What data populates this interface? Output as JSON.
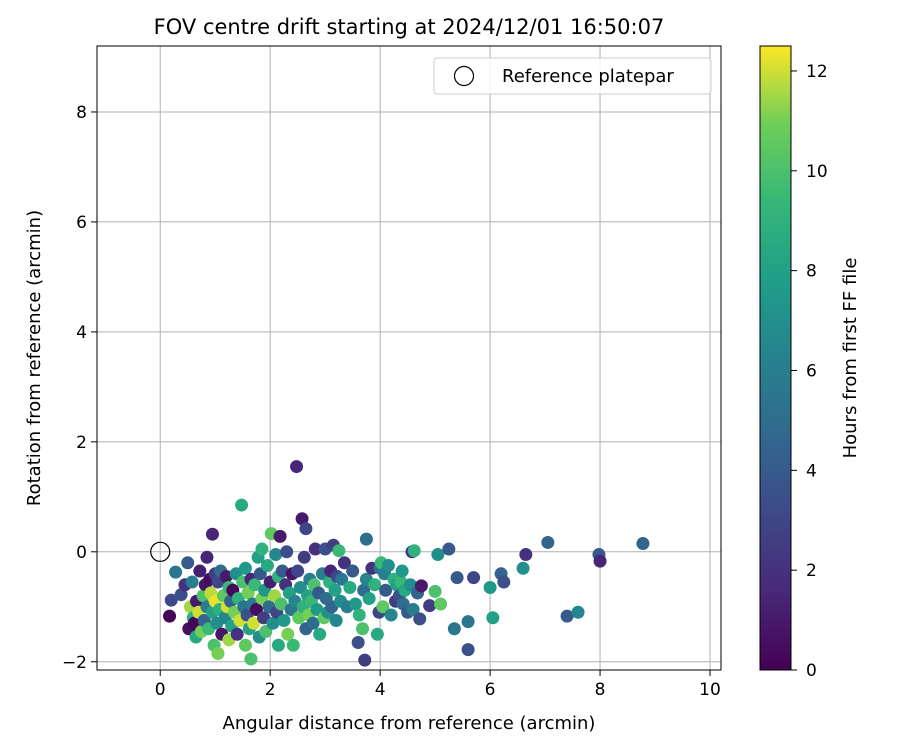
{
  "chart_data": {
    "type": "scatter",
    "title": "FOV centre drift starting at 2024/12/01 16:50:07",
    "xlabel": "Angular distance from reference (arcmin)",
    "ylabel": "Rotation from reference (arcmin)",
    "xlim": [
      -1.15,
      10.2
    ],
    "ylim": [
      -2.15,
      9.2
    ],
    "xticks": [
      0,
      2,
      4,
      6,
      8,
      10
    ],
    "yticks": [
      -2,
      0,
      2,
      4,
      6,
      8
    ],
    "grid": true,
    "legend": {
      "position": "top-right",
      "entries": [
        {
          "label": "Reference platepar",
          "marker": "open-circle"
        }
      ]
    },
    "reference_point": {
      "x": 0,
      "y": 0
    },
    "colorbar": {
      "label": "Hours from first FF file",
      "colormap": "viridis",
      "range": [
        0,
        12.5
      ],
      "ticks": [
        0,
        2,
        4,
        6,
        8,
        10,
        12
      ]
    },
    "points": [
      [
        0.17,
        -1.17,
        0.2
      ],
      [
        0.2,
        -0.88,
        3.2
      ],
      [
        0.28,
        -0.37,
        5.5
      ],
      [
        0.38,
        -0.78,
        3.5
      ],
      [
        0.45,
        -0.6,
        2
      ],
      [
        0.5,
        -0.2,
        4
      ],
      [
        0.52,
        -1.4,
        0.5
      ],
      [
        0.55,
        -1.0,
        11.5
      ],
      [
        0.58,
        -0.55,
        6
      ],
      [
        0.6,
        -1.2,
        9
      ],
      [
        0.62,
        -1.3,
        0.2
      ],
      [
        0.65,
        -1.55,
        8.5
      ],
      [
        0.66,
        -0.9,
        1
      ],
      [
        0.7,
        -1.1,
        12
      ],
      [
        0.72,
        -0.35,
        1.2
      ],
      [
        0.75,
        -1.45,
        11
      ],
      [
        0.78,
        -0.8,
        10
      ],
      [
        0.8,
        -1.25,
        4.5
      ],
      [
        0.82,
        -0.6,
        0.8
      ],
      [
        0.85,
        -1.0,
        6
      ],
      [
        0.85,
        -0.1,
        1.5
      ],
      [
        0.88,
        -1.4,
        9.5
      ],
      [
        0.9,
        -0.5,
        0.5
      ],
      [
        0.92,
        -0.75,
        11.8
      ],
      [
        0.95,
        -1.1,
        8
      ],
      [
        0.95,
        0.32,
        1.5
      ],
      [
        0.98,
        -1.7,
        10
      ],
      [
        1.0,
        -0.4,
        2.5
      ],
      [
        1.0,
        -0.9,
        12.3
      ],
      [
        1.03,
        -1.3,
        7
      ],
      [
        1.05,
        -1.85,
        11
      ],
      [
        1.05,
        -0.55,
        3
      ],
      [
        1.08,
        -1.05,
        9
      ],
      [
        1.1,
        -0.35,
        5
      ],
      [
        1.12,
        -1.5,
        0.8
      ],
      [
        1.15,
        -0.8,
        10.5
      ],
      [
        1.18,
        -1.2,
        6.5
      ],
      [
        1.2,
        -0.45,
        1
      ],
      [
        1.22,
        -1.0,
        12
      ],
      [
        1.25,
        -0.65,
        9.5
      ],
      [
        1.25,
        -1.6,
        11.5
      ],
      [
        1.28,
        -0.9,
        4.5
      ],
      [
        1.3,
        -1.35,
        8
      ],
      [
        1.32,
        -0.7,
        0.3
      ],
      [
        1.35,
        -1.1,
        11
      ],
      [
        1.38,
        -0.4,
        7
      ],
      [
        1.4,
        -1.5,
        2
      ],
      [
        1.42,
        -0.85,
        9
      ],
      [
        1.45,
        -1.25,
        12
      ],
      [
        1.48,
        0.85,
        8.5
      ],
      [
        1.5,
        -0.55,
        10
      ],
      [
        1.52,
        -1.0,
        5.5
      ],
      [
        1.55,
        -1.7,
        10.5
      ],
      [
        1.55,
        -0.3,
        7.5
      ],
      [
        1.58,
        -1.15,
        3.5
      ],
      [
        1.6,
        -0.75,
        11
      ],
      [
        1.62,
        -1.4,
        8
      ],
      [
        1.65,
        -0.5,
        1.5
      ],
      [
        1.65,
        -1.95,
        10
      ],
      [
        1.68,
        -0.95,
        6
      ],
      [
        1.7,
        -1.3,
        12
      ],
      [
        1.72,
        -0.6,
        9.5
      ],
      [
        1.75,
        -1.05,
        0.5
      ],
      [
        1.78,
        -0.1,
        8
      ],
      [
        1.8,
        -1.55,
        7
      ],
      [
        1.82,
        -0.4,
        4
      ],
      [
        1.85,
        -0.85,
        11
      ],
      [
        1.85,
        0.05,
        9
      ],
      [
        1.88,
        -1.2,
        2.5
      ],
      [
        1.9,
        -0.7,
        7.5
      ],
      [
        1.92,
        -1.45,
        10
      ],
      [
        1.95,
        -0.25,
        8.5
      ],
      [
        1.98,
        -1.0,
        5
      ],
      [
        2.0,
        -0.55,
        1.2
      ],
      [
        2.02,
        0.33,
        10.5
      ],
      [
        2.05,
        -1.3,
        7
      ],
      [
        2.08,
        -0.8,
        11.5
      ],
      [
        2.1,
        -0.05,
        6.5
      ],
      [
        2.12,
        -1.1,
        3
      ],
      [
        2.15,
        -0.45,
        9
      ],
      [
        2.15,
        -1.7,
        8.5
      ],
      [
        2.18,
        0.28,
        1
      ],
      [
        2.2,
        -0.95,
        10
      ],
      [
        2.22,
        -0.35,
        4
      ],
      [
        2.25,
        -1.25,
        7.5
      ],
      [
        2.28,
        -0.6,
        2
      ],
      [
        2.3,
        0.0,
        3.5
      ],
      [
        2.32,
        -1.5,
        11
      ],
      [
        2.35,
        -0.75,
        8
      ],
      [
        2.38,
        -1.05,
        5.5
      ],
      [
        2.4,
        -0.4,
        0.8
      ],
      [
        2.42,
        -1.7,
        9.5
      ],
      [
        2.45,
        -0.9,
        6.5
      ],
      [
        2.48,
        1.55,
        1.5
      ],
      [
        2.5,
        -0.35,
        3
      ],
      [
        2.52,
        -1.2,
        10.5
      ],
      [
        2.55,
        -0.65,
        7
      ],
      [
        2.58,
        0.6,
        1
      ],
      [
        2.6,
        -1.0,
        9
      ],
      [
        2.62,
        -0.1,
        2.5
      ],
      [
        2.65,
        -1.4,
        4.5
      ],
      [
        2.65,
        0.42,
        3
      ],
      [
        2.68,
        -0.8,
        8
      ],
      [
        2.7,
        -1.15,
        11
      ],
      [
        2.72,
        -0.5,
        6
      ],
      [
        2.75,
        -0.9,
        9.5
      ],
      [
        2.78,
        -1.3,
        5
      ],
      [
        2.8,
        -0.6,
        10
      ],
      [
        2.82,
        0.05,
        2
      ],
      [
        2.85,
        -1.05,
        7.5
      ],
      [
        2.88,
        -0.75,
        4
      ],
      [
        2.9,
        -1.5,
        8.5
      ],
      [
        2.95,
        -0.4,
        6
      ],
      [
        2.98,
        -1.2,
        10.5
      ],
      [
        3.0,
        0.05,
        3.5
      ],
      [
        3.02,
        -0.85,
        5
      ],
      [
        3.05,
        -1.1,
        7
      ],
      [
        3.08,
        -0.55,
        9
      ],
      [
        3.1,
        -0.35,
        1.5
      ],
      [
        3.12,
        -1.0,
        4.5
      ],
      [
        3.15,
        0.12,
        2.5
      ],
      [
        3.18,
        -0.7,
        8
      ],
      [
        3.2,
        -1.25,
        6.5
      ],
      [
        3.22,
        -0.45,
        3
      ],
      [
        3.25,
        0.02,
        9.5
      ],
      [
        3.28,
        -0.9,
        7
      ],
      [
        3.3,
        -0.5,
        5.5
      ],
      [
        3.35,
        -0.2,
        2
      ],
      [
        3.4,
        -1.0,
        6
      ],
      [
        3.45,
        -0.65,
        8.5
      ],
      [
        3.5,
        -0.35,
        4
      ],
      [
        3.55,
        -0.95,
        7.5
      ],
      [
        3.6,
        -1.65,
        3.5
      ],
      [
        3.62,
        -1.15,
        9
      ],
      [
        3.68,
        -1.4,
        10
      ],
      [
        3.7,
        -0.7,
        5
      ],
      [
        3.72,
        -1.97,
        2.5
      ],
      [
        3.75,
        -0.5,
        6.5
      ],
      [
        3.75,
        0.23,
        5
      ],
      [
        3.8,
        -0.85,
        8
      ],
      [
        3.85,
        -0.3,
        2
      ],
      [
        3.9,
        -0.6,
        9
      ],
      [
        3.95,
        -1.5,
        8.5
      ],
      [
        3.98,
        -1.1,
        3
      ],
      [
        4.0,
        -0.3,
        5.5
      ],
      [
        4.02,
        -0.2,
        9.5
      ],
      [
        4.05,
        -1.0,
        10.5
      ],
      [
        4.08,
        -0.4,
        6
      ],
      [
        4.1,
        -0.7,
        4
      ],
      [
        4.15,
        -0.25,
        7
      ],
      [
        4.2,
        -1.15,
        6.5
      ],
      [
        4.25,
        -0.5,
        9
      ],
      [
        4.28,
        -0.9,
        2.5
      ],
      [
        4.3,
        -0.6,
        8
      ],
      [
        4.35,
        -0.8,
        3.5
      ],
      [
        4.38,
        -0.55,
        9.5
      ],
      [
        4.4,
        -0.35,
        7.5
      ],
      [
        4.42,
        -0.95,
        5
      ],
      [
        4.45,
        -0.7,
        8.5
      ],
      [
        4.5,
        -1.1,
        4
      ],
      [
        4.55,
        -0.6,
        7
      ],
      [
        4.58,
        0.0,
        2
      ],
      [
        4.6,
        -1.05,
        6
      ],
      [
        4.62,
        0.02,
        9
      ],
      [
        4.68,
        -0.75,
        4.5
      ],
      [
        4.72,
        -1.22,
        3.5
      ],
      [
        4.75,
        -0.62,
        1
      ],
      [
        4.9,
        -0.98,
        2.5
      ],
      [
        5.0,
        -0.72,
        10
      ],
      [
        5.05,
        -0.05,
        7
      ],
      [
        5.1,
        -0.95,
        10.5
      ],
      [
        5.25,
        0.05,
        4
      ],
      [
        5.35,
        -1.4,
        5.5
      ],
      [
        5.4,
        -0.47,
        4
      ],
      [
        5.6,
        -1.78,
        3.5
      ],
      [
        5.6,
        -1.27,
        5.5
      ],
      [
        5.7,
        -0.47,
        3
      ],
      [
        6.0,
        -0.65,
        7.5
      ],
      [
        6.05,
        -1.2,
        8
      ],
      [
        6.2,
        -0.4,
        4.5
      ],
      [
        6.25,
        -0.55,
        3.5
      ],
      [
        6.6,
        -0.3,
        7
      ],
      [
        6.65,
        -0.05,
        2
      ],
      [
        7.05,
        0.17,
        4.5
      ],
      [
        7.4,
        -1.17,
        4
      ],
      [
        7.6,
        -1.1,
        6.5
      ],
      [
        7.98,
        -0.05,
        4
      ],
      [
        8.0,
        -0.17,
        1.5
      ],
      [
        8.78,
        0.15,
        4.5
      ]
    ]
  }
}
